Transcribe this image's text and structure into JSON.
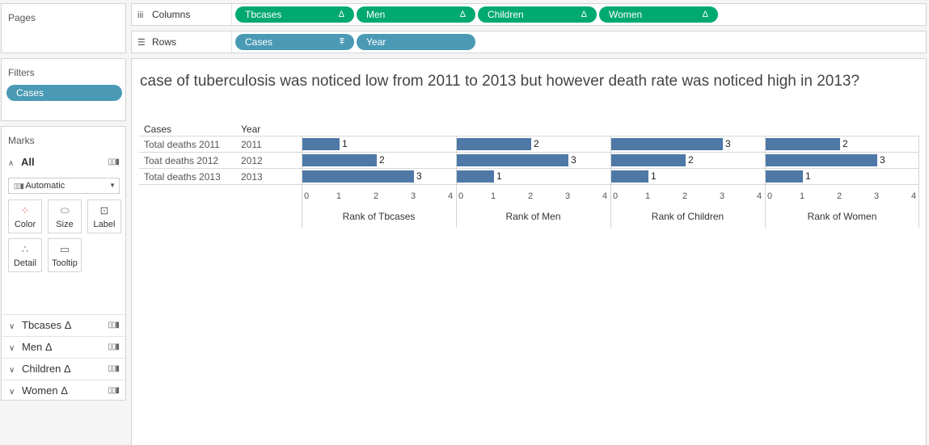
{
  "pages_label": "Pages",
  "shelves": {
    "columns_label": "Columns",
    "rows_label": "Rows",
    "columns_pills": [
      {
        "label": "Tbcases",
        "delta": "Δ"
      },
      {
        "label": "Men",
        "delta": "Δ"
      },
      {
        "label": "Children",
        "delta": "Δ"
      },
      {
        "label": "Women",
        "delta": "Δ"
      }
    ],
    "rows_pills": [
      {
        "label": "Cases",
        "sort": "⩱"
      },
      {
        "label": "Year"
      }
    ]
  },
  "filters": {
    "title": "Filters",
    "pill": "Cases"
  },
  "marks": {
    "title": "Marks",
    "all_label": "All",
    "mark_type": "Automatic",
    "buttons": [
      "Color",
      "Size",
      "Label",
      "Detail",
      "Tooltip"
    ],
    "measures": [
      {
        "label": "Tbcases",
        "delta": "Δ"
      },
      {
        "label": "Men",
        "delta": "Δ"
      },
      {
        "label": "Children",
        "delta": "Δ"
      },
      {
        "label": "Women",
        "delta": "Δ"
      }
    ]
  },
  "sheet": {
    "title": "case of tuberculosis was noticed low from 2011 to 2013 but however death rate was noticed high in 2013?",
    "cases_header": "Cases",
    "year_header": "Year"
  },
  "chart_data": {
    "type": "bar",
    "orientation": "horizontal",
    "rows": [
      {
        "case": "Total deaths 2011",
        "year": "2011"
      },
      {
        "case": "Toat deaths 2012",
        "year": "2012"
      },
      {
        "case": "Total deaths 2013",
        "year": "2013"
      }
    ],
    "panes": [
      {
        "axis_title": "Rank of Tbcases",
        "values": [
          1,
          2,
          3
        ]
      },
      {
        "axis_title": "Rank of Men",
        "values": [
          2,
          3,
          1
        ]
      },
      {
        "axis_title": "Rank of Children",
        "values": [
          3,
          2,
          1
        ]
      },
      {
        "axis_title": "Rank of Women",
        "values": [
          2,
          3,
          1
        ]
      }
    ],
    "xlim": [
      0,
      4
    ],
    "ticks": [
      "0",
      "1",
      "2",
      "3",
      "4"
    ],
    "bar_color": "#4e79a7"
  }
}
